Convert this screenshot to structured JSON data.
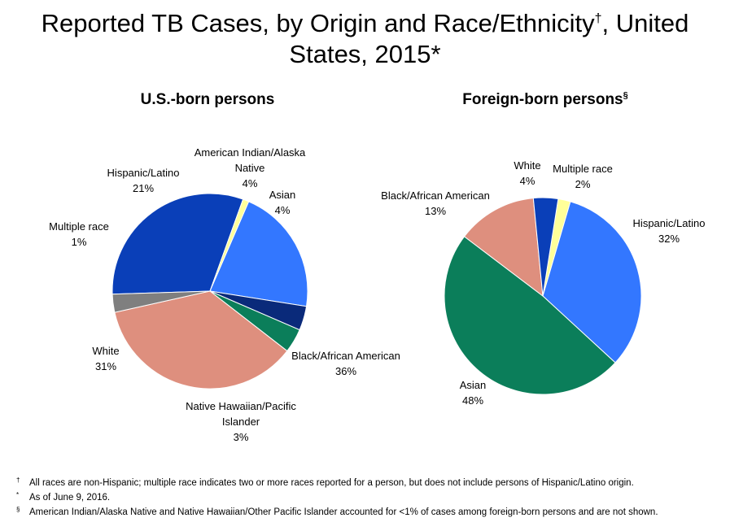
{
  "title": {
    "line1": "Reported TB Cases, by Origin and Race/Ethnicity",
    "line1_mark": "†",
    "line1_end": ", United",
    "line2": "States, 2015*"
  },
  "colors": {
    "dark_blue": "#0a3fb8",
    "navy": "#0a2a7a",
    "green": "#0b7e5a",
    "salmon": "#de8f7e",
    "gray": "#7f7f7f",
    "light_blue": "#3377ff",
    "light_yellow": "#ffff99"
  },
  "chart_data": [
    {
      "type": "pie",
      "title": "U.S.-born persons",
      "title_mark": "",
      "slices": [
        {
          "label": "White",
          "value": 31,
          "color": "#0a3fb8"
        },
        {
          "label": "Multiple race",
          "value": 1,
          "color": "#ffff99"
        },
        {
          "label": "Hispanic/Latino",
          "value": 21,
          "color": "#3377ff"
        },
        {
          "label": "American Indian/Alaska Native",
          "value": 4,
          "color": "#0a2a7a"
        },
        {
          "label": "Asian",
          "value": 4,
          "color": "#0b7e5a"
        },
        {
          "label": "Black/African American",
          "value": 36,
          "color": "#de8f7e"
        },
        {
          "label": "Native Hawaiian/Pacific Islander",
          "value": 3,
          "color": "#7f7f7f"
        }
      ],
      "labels": [
        {
          "lines": [
            "White",
            "31%"
          ]
        },
        {
          "lines": [
            "Multiple race",
            "1%"
          ]
        },
        {
          "lines": [
            "Hispanic/Latino",
            "21%"
          ]
        },
        {
          "lines": [
            "American Indian/Alaska",
            "Native",
            "4%"
          ]
        },
        {
          "lines": [
            "Asian",
            "4%"
          ]
        },
        {
          "lines": [
            "Black/African American",
            "36%"
          ]
        },
        {
          "lines": [
            "Native Hawaiian/Pacific",
            "Islander",
            "3%"
          ]
        }
      ]
    },
    {
      "type": "pie",
      "title": "Foreign-born persons",
      "title_mark": "§",
      "slices": [
        {
          "label": "Multiple race",
          "value": 2,
          "color": "#ffff99"
        },
        {
          "label": "Hispanic/Latino",
          "value": 32,
          "color": "#3377ff"
        },
        {
          "label": "Asian",
          "value": 48,
          "color": "#0b7e5a"
        },
        {
          "label": "Black/African American",
          "value": 13,
          "color": "#de8f7e"
        },
        {
          "label": "White",
          "value": 4,
          "color": "#0a3fb8"
        }
      ],
      "labels": [
        {
          "lines": [
            "Multiple race",
            "2%"
          ]
        },
        {
          "lines": [
            "Hispanic/Latino",
            "32%"
          ]
        },
        {
          "lines": [
            "Asian",
            "48%"
          ]
        },
        {
          "lines": [
            "Black/African American",
            "13%"
          ]
        },
        {
          "lines": [
            "White",
            "4%"
          ]
        }
      ]
    }
  ],
  "footnotes": [
    {
      "mark": "†",
      "text": "All races are non-Hispanic;  multiple race indicates two or more races reported for a person, but does not include persons of Hispanic/Latino origin."
    },
    {
      "mark": "*",
      "text": "As of June 9, 2016."
    },
    {
      "mark": "§",
      "text": "American Indian/Alaska Native and Native Hawaiian/Other Pacific Islander accounted for <1% of cases among foreign-born persons and are not shown."
    }
  ]
}
